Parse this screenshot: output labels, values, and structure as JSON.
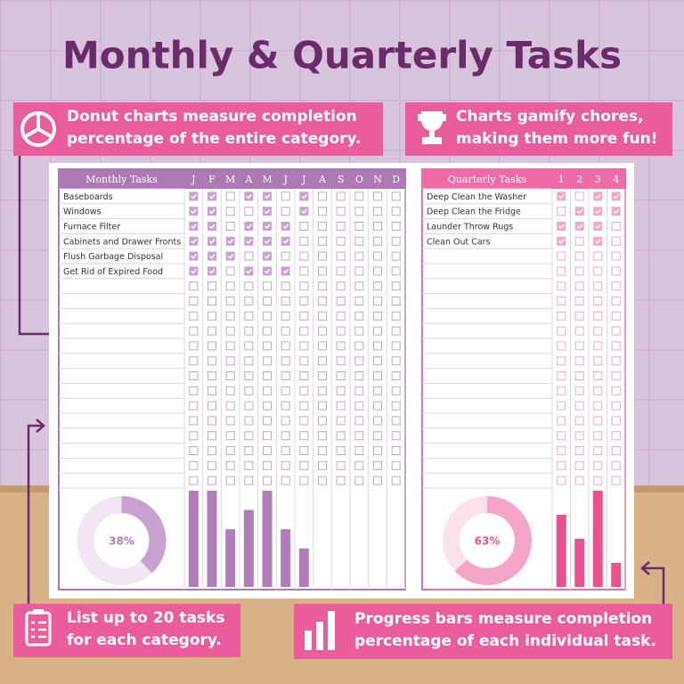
{
  "title": "Monthly & Quarterly Tasks",
  "callouts": [
    {
      "lines": [
        "Donut charts measure completion",
        "percentage of the entire category."
      ]
    },
    {
      "lines": [
        "Charts gamify chores,",
        "making them more fun!"
      ]
    },
    {
      "lines": [
        "List up to 20 tasks",
        "for each category."
      ]
    },
    {
      "lines": [
        "Progress bars measure completion",
        "percentage of each individual task."
      ]
    }
  ],
  "monthly": {
    "header": "Monthly Tasks",
    "columns": [
      "J",
      "F",
      "M",
      "A",
      "M",
      "J",
      "J",
      "A",
      "S",
      "O",
      "N",
      "D"
    ],
    "tasks": [
      "Baseboards",
      "Windows",
      "Furnace Filter",
      "Cabinets and Drawer Fronts",
      "Flush Garbage Disposal",
      "Get Rid of Expired Food"
    ],
    "checks": [
      [
        1,
        1,
        0,
        1,
        1,
        0,
        1,
        0,
        0,
        0,
        0,
        0
      ],
      [
        1,
        1,
        0,
        0,
        1,
        0,
        1,
        0,
        0,
        0,
        0,
        0
      ],
      [
        1,
        1,
        0,
        1,
        1,
        1,
        0,
        0,
        0,
        0,
        0,
        0
      ],
      [
        1,
        1,
        1,
        1,
        1,
        1,
        0,
        0,
        0,
        0,
        0,
        0
      ],
      [
        1,
        1,
        1,
        0,
        1,
        0,
        0,
        0,
        0,
        0,
        0,
        0
      ],
      [
        1,
        1,
        0,
        1,
        1,
        1,
        0,
        0,
        0,
        0,
        0,
        0
      ]
    ],
    "donut": {
      "value": 38,
      "label": "38%"
    },
    "bars": [
      100,
      100,
      60,
      80,
      100,
      60,
      40
    ],
    "ylim": [
      0,
      100
    ]
  },
  "quarterly": {
    "header": "Quarterly Tasks",
    "columns": [
      "1",
      "2",
      "3",
      "4"
    ],
    "tasks": [
      "Deep Clean the Washer",
      "Deep Clean the Fridge",
      "Launder Throw Rugs",
      "Clean Out Cars"
    ],
    "checks": [
      [
        1,
        0,
        1,
        1
      ],
      [
        0,
        1,
        1,
        1
      ],
      [
        1,
        1,
        1,
        0
      ],
      [
        1,
        0,
        1,
        0
      ]
    ],
    "donut": {
      "value": 63,
      "label": "63%"
    },
    "bars": [
      75,
      50,
      100,
      25
    ],
    "ylim": [
      0,
      100
    ]
  }
}
